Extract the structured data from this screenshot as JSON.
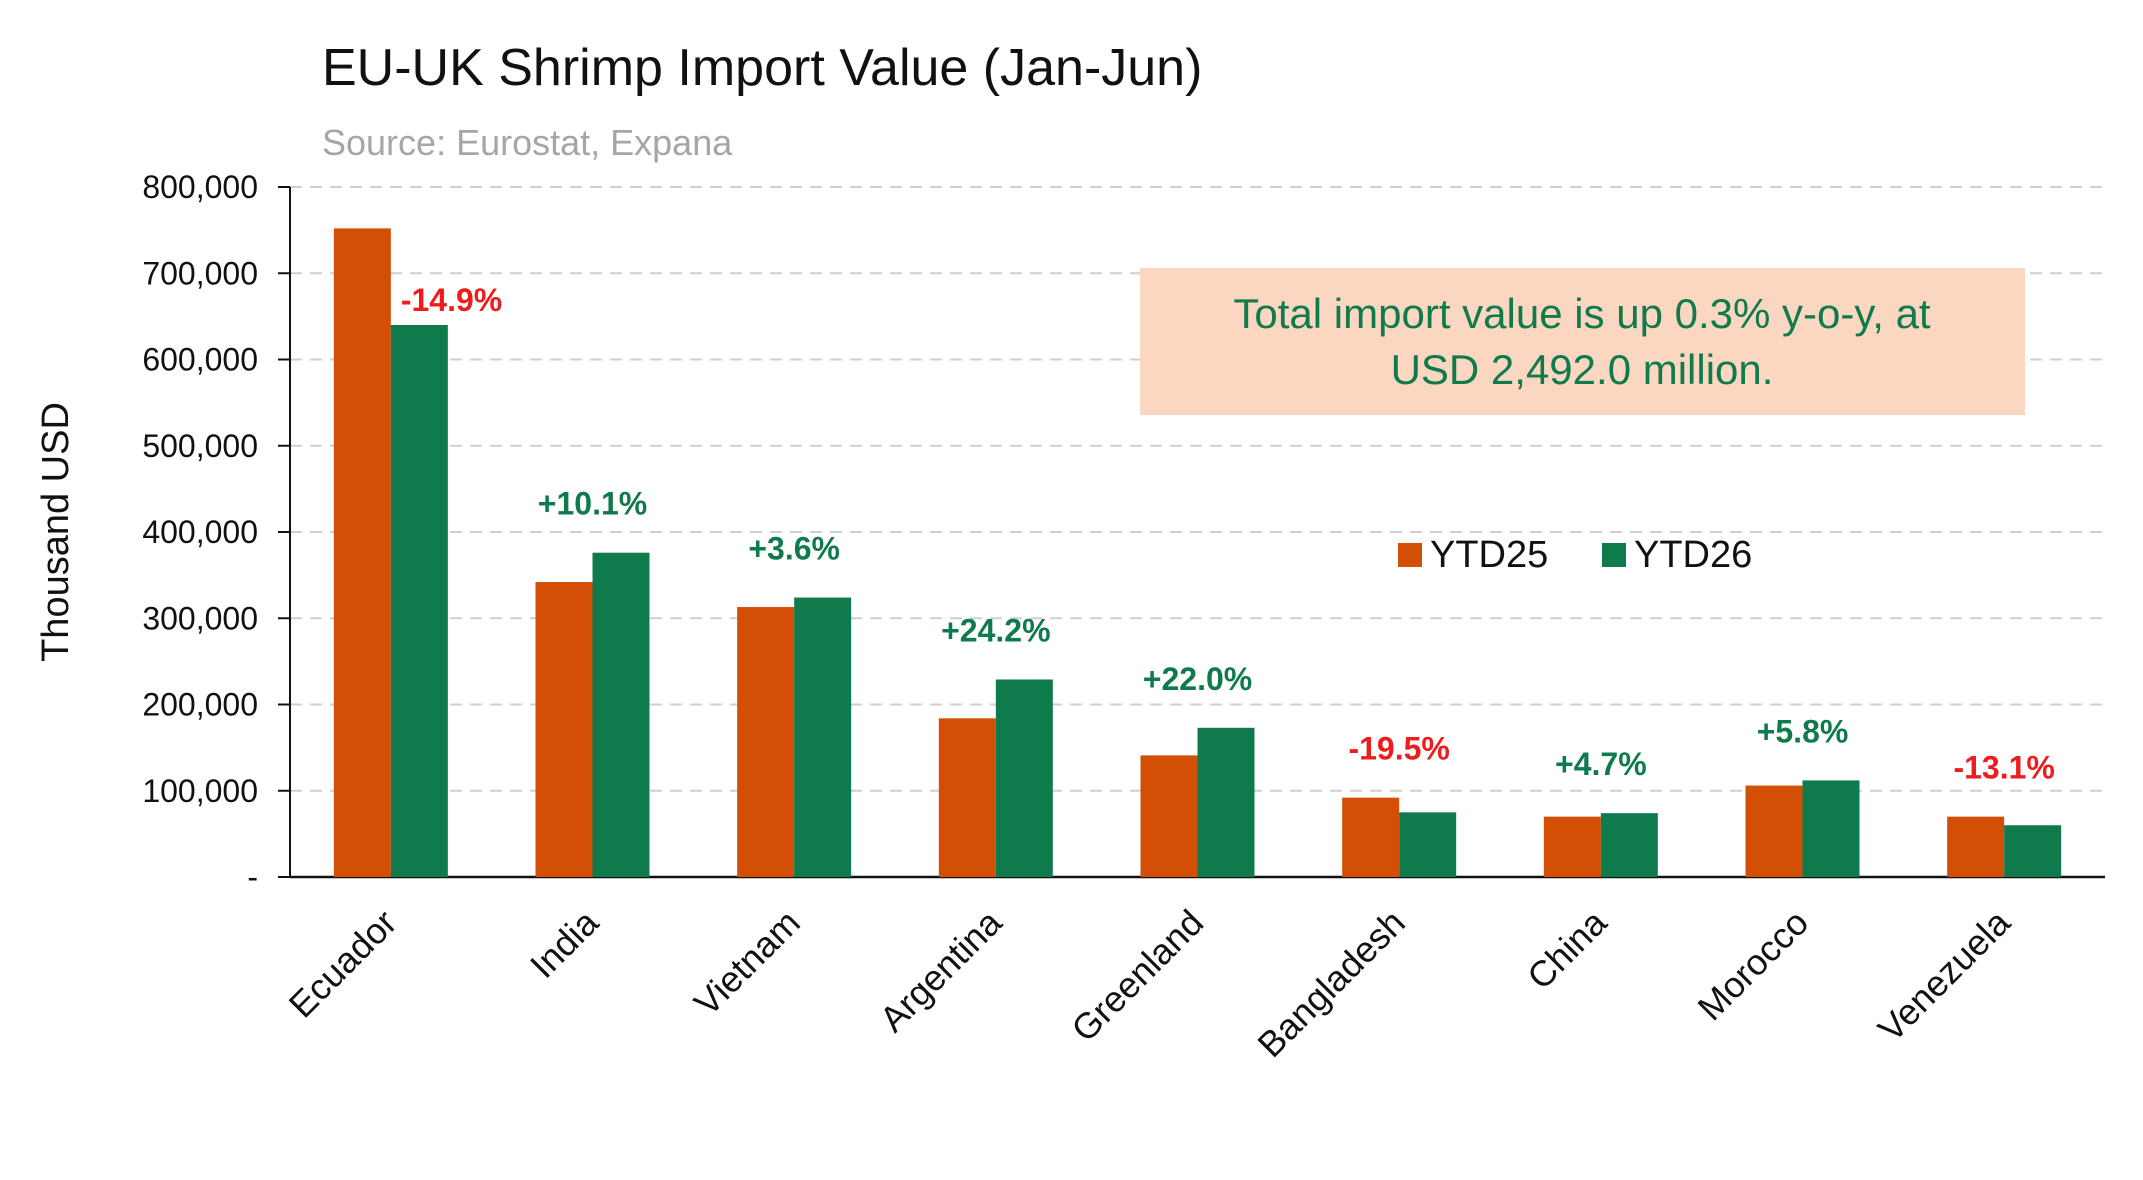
{
  "chart_data": {
    "type": "bar",
    "title": "EU-UK Shrimp Import Value (Jan-Jun)",
    "subtitle": "Source: Eurostat, Expana",
    "ylabel": "Thousand USD",
    "xlabel": "",
    "ylim": [
      0,
      800000
    ],
    "yticks": [
      0,
      100000,
      200000,
      300000,
      400000,
      500000,
      600000,
      700000,
      800000
    ],
    "ytick_labels": [
      "-",
      "100,000",
      "200,000",
      "300,000",
      "400,000",
      "500,000",
      "600,000",
      "700,000",
      "800,000"
    ],
    "grid": "horizontal dashed",
    "legend_position": "right-middle",
    "categories": [
      "Ecuador",
      "India",
      "Vietnam",
      "Argentina",
      "Greenland",
      "Bangladesh",
      "China",
      "Morocco",
      "Venezuela"
    ],
    "series": [
      {
        "name": "YTD25",
        "color": "#d34f06",
        "values": [
          752000,
          342000,
          313000,
          184000,
          141000,
          92000,
          70000,
          106000,
          70000
        ]
      },
      {
        "name": "YTD26",
        "color": "#0f7a4c",
        "values": [
          640000,
          376000,
          324000,
          229000,
          173000,
          75000,
          74000,
          112000,
          60000
        ]
      }
    ],
    "change_labels": [
      "-14.9%",
      "+10.1%",
      "+3.6%",
      "+24.2%",
      "+22.0%",
      "-19.5%",
      "+4.7%",
      "+5.8%",
      "-13.1%"
    ],
    "change_colors": {
      "positive": "#0f7a4c",
      "negative": "#ee1c1c"
    },
    "annotation": {
      "lines": [
        "Total import value is up 0.3% y-o-y, at",
        "USD 2,492.0 million."
      ],
      "background": "#fbd6c0",
      "text_color": "#0f7a4c"
    }
  }
}
